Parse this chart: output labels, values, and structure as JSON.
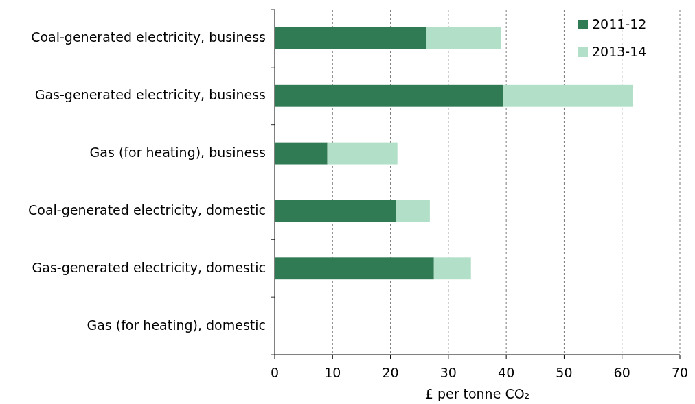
{
  "chart_data": {
    "type": "bar",
    "orientation": "horizontal",
    "stacked": true,
    "categories": [
      "Coal-generated electricity, business",
      "Gas-generated electricity, business",
      "Gas (for heating), business",
      "Coal-generated electricity, domestic",
      "Gas-generated electricity, domestic",
      "Gas (for heating), domestic"
    ],
    "series": [
      {
        "name": "2011-12",
        "color": "#317b54",
        "values": [
          26.2,
          39.5,
          9.1,
          20.9,
          27.5,
          0
        ]
      },
      {
        "name": "2013-14",
        "color": "#b2dfc7",
        "values": [
          12.9,
          22.4,
          12.1,
          5.9,
          6.4,
          0
        ]
      }
    ],
    "xlabel": "£ per tonne CO₂",
    "xlim": [
      0,
      70
    ],
    "xticks": [
      0,
      10,
      20,
      30,
      40,
      50,
      60,
      70
    ],
    "grid": "x",
    "legend": "top right"
  }
}
